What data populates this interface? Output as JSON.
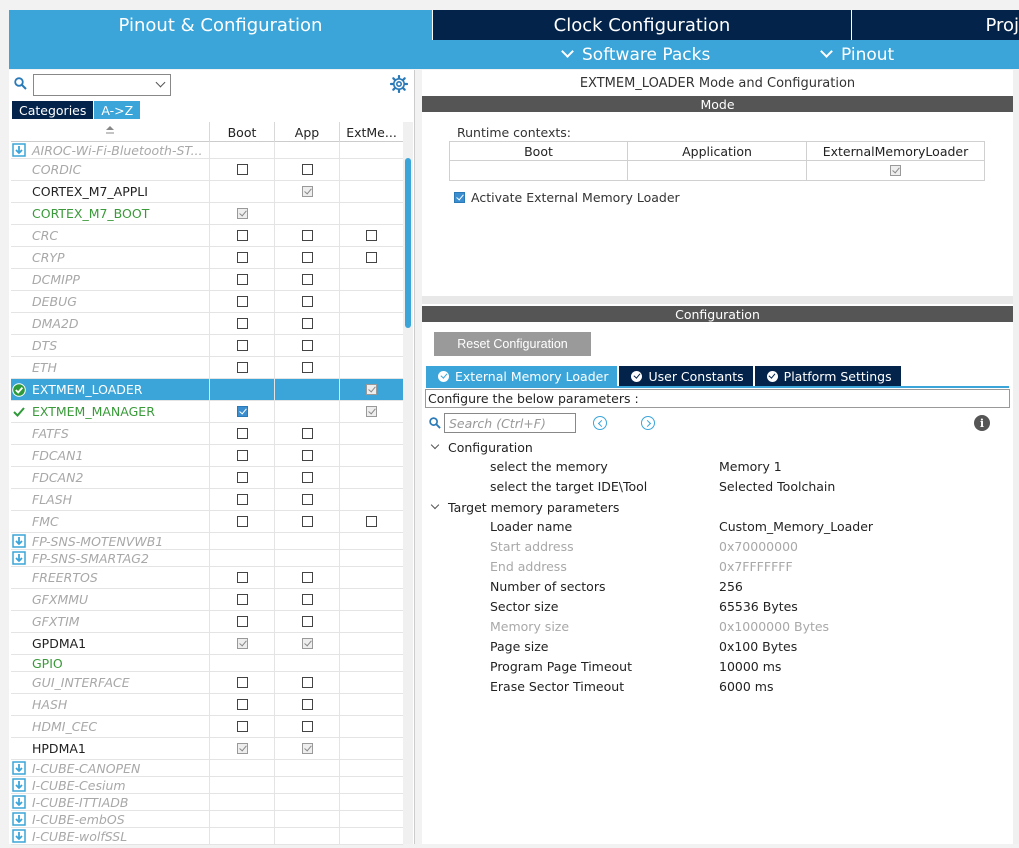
{
  "top_tabs": [
    {
      "label": "Pinout & Configuration"
    },
    {
      "label": "Clock Configuration"
    },
    {
      "label": "Proj"
    }
  ],
  "subbar": {
    "software_packs": "Software Packs",
    "pinout": "Pinout"
  },
  "left": {
    "categories_tab": "Categories",
    "az_tab": "A->Z",
    "columns": [
      "Boot",
      "App",
      "ExtMe..."
    ],
    "rows": [
      {
        "name": "AIROC-Wi-Fi-Bluetooth-ST...",
        "style": "pack",
        "lead": "pack",
        "boot": "",
        "app": "",
        "ext": "",
        "h": 17
      },
      {
        "name": "CORDIC",
        "style": "disabled",
        "lead": "",
        "boot": "off",
        "app": "off",
        "ext": "",
        "h": 22
      },
      {
        "name": "CORTEX_M7_APPLI",
        "style": "normal",
        "lead": "",
        "boot": "",
        "app": "on",
        "ext": "",
        "h": 22
      },
      {
        "name": "CORTEX_M7_BOOT",
        "style": "green",
        "lead": "",
        "boot": "on",
        "app": "",
        "ext": "",
        "h": 22
      },
      {
        "name": "CRC",
        "style": "disabled",
        "lead": "",
        "boot": "off",
        "app": "off",
        "ext": "off",
        "h": 22
      },
      {
        "name": "CRYP",
        "style": "disabled",
        "lead": "",
        "boot": "off",
        "app": "off",
        "ext": "off",
        "h": 22
      },
      {
        "name": "DCMIPP",
        "style": "disabled",
        "lead": "",
        "boot": "off",
        "app": "off",
        "ext": "",
        "h": 22
      },
      {
        "name": "DEBUG",
        "style": "disabled",
        "lead": "",
        "boot": "off",
        "app": "off",
        "ext": "",
        "h": 22
      },
      {
        "name": "DMA2D",
        "style": "disabled",
        "lead": "",
        "boot": "off",
        "app": "off",
        "ext": "",
        "h": 22
      },
      {
        "name": "DTS",
        "style": "disabled",
        "lead": "",
        "boot": "off",
        "app": "off",
        "ext": "",
        "h": 22
      },
      {
        "name": "ETH",
        "style": "disabled",
        "lead": "",
        "boot": "off",
        "app": "off",
        "ext": "",
        "h": 22
      },
      {
        "name": "EXTMEM_LOADER",
        "style": "selected",
        "lead": "check-circle",
        "boot": "",
        "app": "",
        "ext": "on",
        "h": 22
      },
      {
        "name": "EXTMEM_MANAGER",
        "style": "green",
        "lead": "check",
        "boot": "blue",
        "app": "",
        "ext": "on",
        "h": 22
      },
      {
        "name": "FATFS",
        "style": "disabled",
        "lead": "",
        "boot": "off",
        "app": "off",
        "ext": "",
        "h": 22
      },
      {
        "name": "FDCAN1",
        "style": "disabled",
        "lead": "",
        "boot": "off",
        "app": "off",
        "ext": "",
        "h": 22
      },
      {
        "name": "FDCAN2",
        "style": "disabled",
        "lead": "",
        "boot": "off",
        "app": "off",
        "ext": "",
        "h": 22
      },
      {
        "name": "FLASH",
        "style": "disabled",
        "lead": "",
        "boot": "off",
        "app": "off",
        "ext": "",
        "h": 22
      },
      {
        "name": "FMC",
        "style": "disabled",
        "lead": "",
        "boot": "off",
        "app": "off",
        "ext": "off",
        "h": 22
      },
      {
        "name": "FP-SNS-MOTENVWB1",
        "style": "pack",
        "lead": "pack",
        "boot": "",
        "app": "",
        "ext": "",
        "h": 17
      },
      {
        "name": "FP-SNS-SMARTAG2",
        "style": "pack",
        "lead": "pack",
        "boot": "",
        "app": "",
        "ext": "",
        "h": 17
      },
      {
        "name": "FREERTOS",
        "style": "disabled",
        "lead": "",
        "boot": "off",
        "app": "off",
        "ext": "",
        "h": 22
      },
      {
        "name": "GFXMMU",
        "style": "disabled",
        "lead": "",
        "boot": "off",
        "app": "off",
        "ext": "",
        "h": 22
      },
      {
        "name": "GFXTIM",
        "style": "disabled",
        "lead": "",
        "boot": "off",
        "app": "off",
        "ext": "",
        "h": 22
      },
      {
        "name": "GPDMA1",
        "style": "normal",
        "lead": "",
        "boot": "on",
        "app": "on",
        "ext": "",
        "h": 22
      },
      {
        "name": "GPIO",
        "style": "green",
        "lead": "",
        "boot": "",
        "app": "",
        "ext": "",
        "h": 17
      },
      {
        "name": "GUI_INTERFACE",
        "style": "disabled",
        "lead": "",
        "boot": "off",
        "app": "off",
        "ext": "",
        "h": 22
      },
      {
        "name": "HASH",
        "style": "disabled",
        "lead": "",
        "boot": "off",
        "app": "off",
        "ext": "",
        "h": 22
      },
      {
        "name": "HDMI_CEC",
        "style": "disabled",
        "lead": "",
        "boot": "off",
        "app": "off",
        "ext": "",
        "h": 22
      },
      {
        "name": "HPDMA1",
        "style": "normal",
        "lead": "",
        "boot": "on",
        "app": "on",
        "ext": "",
        "h": 22
      },
      {
        "name": "I-CUBE-CANOPEN",
        "style": "pack",
        "lead": "pack",
        "boot": "",
        "app": "",
        "ext": "",
        "h": 17
      },
      {
        "name": "I-CUBE-Cesium",
        "style": "pack",
        "lead": "pack",
        "boot": "",
        "app": "",
        "ext": "",
        "h": 17
      },
      {
        "name": "I-CUBE-ITTIADB",
        "style": "pack",
        "lead": "pack",
        "boot": "",
        "app": "",
        "ext": "",
        "h": 17
      },
      {
        "name": "I-CUBE-embOS",
        "style": "pack",
        "lead": "pack",
        "boot": "",
        "app": "",
        "ext": "",
        "h": 17
      },
      {
        "name": "I-CUBE-wolfSSL",
        "style": "pack",
        "lead": "pack",
        "boot": "",
        "app": "",
        "ext": "",
        "h": 17
      }
    ]
  },
  "mode": {
    "title": "EXTMEM_LOADER Mode and Configuration",
    "section": "Mode",
    "runtime_label": "Runtime contexts:",
    "runtime_columns": [
      "Boot",
      "Application",
      "ExternalMemoryLoader"
    ],
    "activate_label": "Activate External Memory Loader"
  },
  "config": {
    "section": "Configuration",
    "reset_label": "Reset Configuration",
    "tabs": [
      "External Memory Loader",
      "User Constants",
      "Platform Settings"
    ],
    "hint": "Configure the below parameters :",
    "search_placeholder": "Search (Ctrl+F)",
    "info": "i",
    "groups": [
      {
        "title": "Configuration",
        "params": [
          {
            "name": "select the memory",
            "value": "Memory 1",
            "dim": false
          },
          {
            "name": "select the target IDE\\Tool",
            "value": "Selected Toolchain",
            "dim": false
          }
        ]
      },
      {
        "title": "Target memory parameters",
        "params": [
          {
            "name": "Loader name",
            "value": "Custom_Memory_Loader",
            "dim": false
          },
          {
            "name": "Start address",
            "value": "0x70000000",
            "dim": true
          },
          {
            "name": "End address",
            "value": "0x7FFFFFFF",
            "dim": true
          },
          {
            "name": "Number of sectors",
            "value": "256",
            "dim": false
          },
          {
            "name": "Sector size",
            "value": "65536 Bytes",
            "dim": false
          },
          {
            "name": "Memory size",
            "value": "0x1000000 Bytes",
            "dim": true
          },
          {
            "name": "Page size",
            "value": "0x100 Bytes",
            "dim": false
          },
          {
            "name": "Program Page Timeout",
            "value": "10000 ms",
            "dim": false
          },
          {
            "name": "Erase Sector Timeout",
            "value": "6000 ms",
            "dim": false
          }
        ]
      }
    ]
  }
}
